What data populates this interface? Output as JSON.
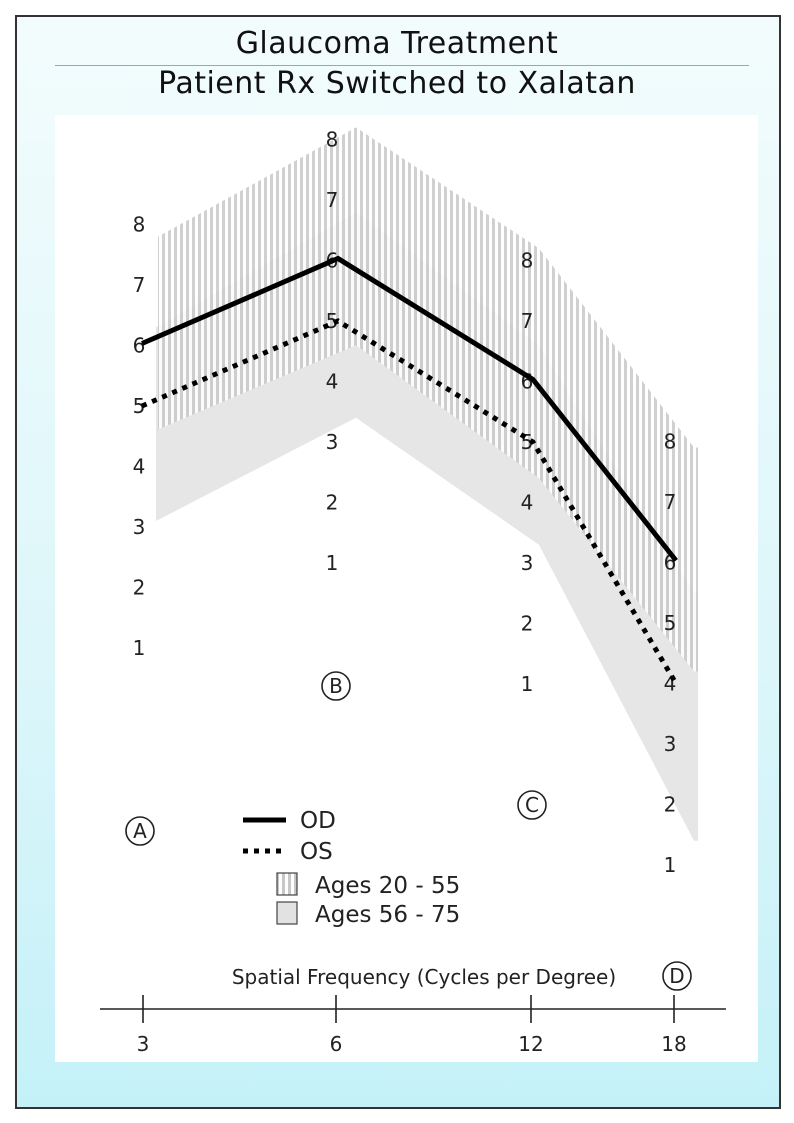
{
  "title": "Glaucoma Treatment",
  "subtitle": "Patient Rx Switched to Xalatan",
  "chart_data": {
    "type": "line",
    "title": "Glaucoma Treatment",
    "subtitle": "Patient Rx Switched to Xalatan",
    "xlabel": "Spatial Frequency (Cycles per Degree)",
    "x": [
      3,
      6,
      12,
      18
    ],
    "x_tick_labels": [
      "3",
      "6",
      "12",
      "18"
    ],
    "row_labels": [
      "A",
      "B",
      "C",
      "D"
    ],
    "ylim": [
      1,
      8
    ],
    "y_tick_labels": [
      "1",
      "2",
      "3",
      "4",
      "5",
      "6",
      "7",
      "8"
    ],
    "grid": false,
    "legend_position": "center-left",
    "series": [
      {
        "name": "OD",
        "style": "solid",
        "color": "#000000",
        "values": [
          6,
          6,
          6,
          6
        ]
      },
      {
        "name": "OS",
        "style": "dotted",
        "color": "#000000",
        "values": [
          5,
          5,
          5,
          4
        ]
      }
    ],
    "bands": [
      {
        "name": "Ages 20 - 55",
        "pattern": "vertical-stripes",
        "color": "#c9c9c9",
        "lower": [
          4.6,
          4.6,
          4.4,
          4.2
        ],
        "upper": [
          7.8,
          8.2,
          8.2,
          7.9
        ]
      },
      {
        "name": "Ages 56 - 75",
        "pattern": "solid",
        "color": "#e6e6e7",
        "lower": [
          3.1,
          3.4,
          3.3,
          1.4
        ],
        "upper": [
          6.3,
          6.8,
          6.6,
          5.5
        ]
      }
    ]
  },
  "legend": [
    {
      "name": "OD",
      "swatch": "solid-line"
    },
    {
      "name": "OS",
      "swatch": "dotted-line"
    },
    {
      "name": "Ages 20 - 55",
      "swatch": "striped-box"
    },
    {
      "name": "Ages 56 - 75",
      "swatch": "gray-box"
    }
  ]
}
